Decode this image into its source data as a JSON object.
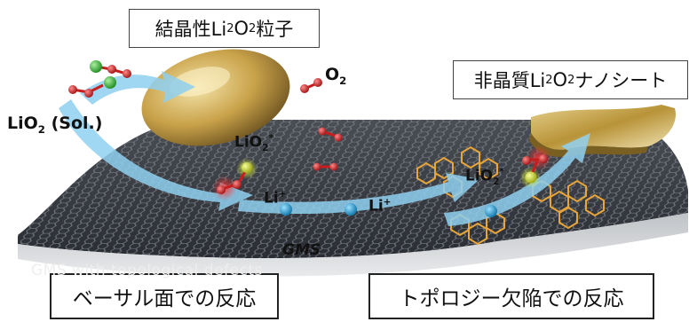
{
  "labels": {
    "crystalline_prefix": "結晶性Li",
    "crystalline_mid": "O",
    "crystalline_suffix": "粒子",
    "amorphous_prefix": "非晶質Li",
    "amorphous_mid": "O",
    "amorphous_suffix": "ナノシート",
    "sub2": "2",
    "o2_main": "O",
    "lio2_sol_main": "LiO",
    "lio2_sol_tail": " (Sol.)",
    "lio2_ads_main": "LiO",
    "star": "*",
    "li_main": "Li",
    "plus": "+",
    "gms": "GMS",
    "watermark": "GMS with topological defects",
    "basal": "ベーサル面での反応",
    "topology": "トポロジー欠陥での反応"
  },
  "colors": {
    "sheet_dark": "#2a2d33",
    "graphene_line": "#6b6f75",
    "defect": "#e8a53a",
    "arrow": "#8fd0f0",
    "particle_gold": "#c9a24a",
    "oxygen": "#d22a2a",
    "lithium_green": "#2fb52f",
    "ion_blue": "#1b9ed8"
  }
}
